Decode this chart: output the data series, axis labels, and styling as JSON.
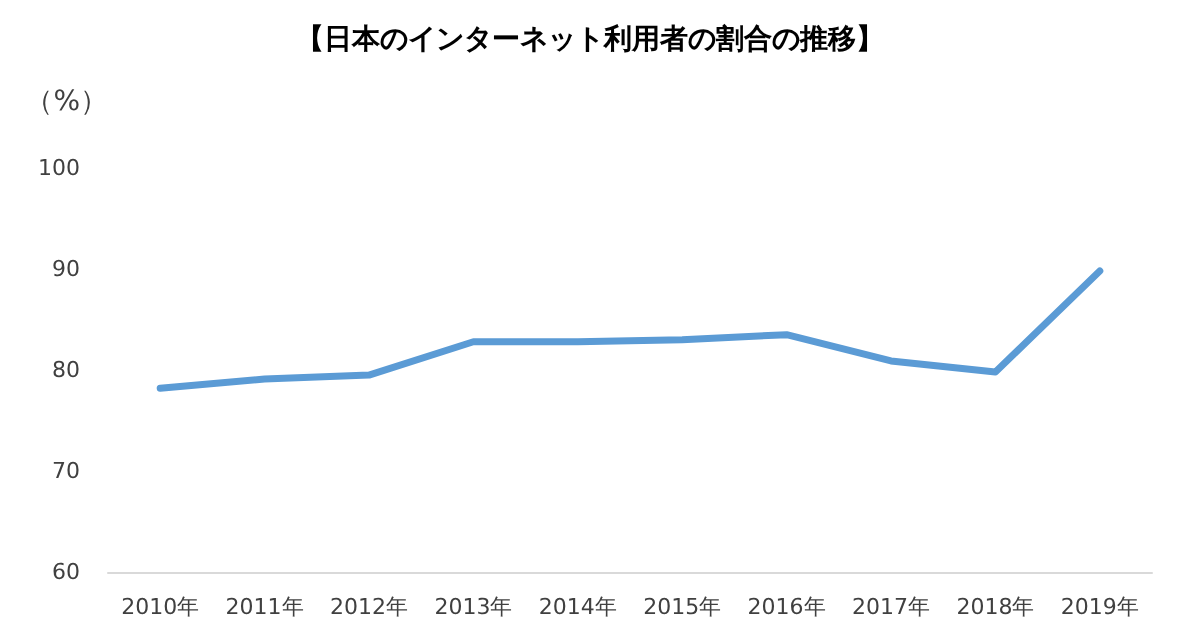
{
  "chart_data": {
    "type": "line",
    "title": "【日本のインターネット利用者の割合の推移】",
    "ylabel": "（%）",
    "categories": [
      "2010年",
      "2011年",
      "2012年",
      "2013年",
      "2014年",
      "2015年",
      "2016年",
      "2017年",
      "2018年",
      "2019年"
    ],
    "series": [
      {
        "color": "#5b9bd5",
        "values": [
          78.2,
          79.1,
          79.5,
          82.8,
          82.8,
          83.0,
          83.5,
          80.9,
          79.8,
          89.8
        ]
      }
    ],
    "ylim": [
      60,
      100
    ],
    "yticks": [
      60,
      70,
      80,
      90,
      100
    ],
    "grid": false,
    "marker": "none",
    "line_style": "solid"
  }
}
